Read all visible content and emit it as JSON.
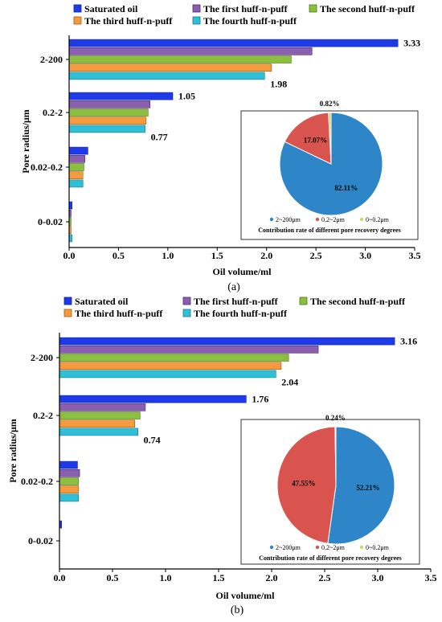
{
  "series_style": [
    {
      "name": "Saturated oil",
      "color": "#1f3be8",
      "stroke": "#0b1fb0"
    },
    {
      "name": "The first huff-n-puff",
      "color": "#8a5fb0",
      "stroke": "#4a2a70"
    },
    {
      "name": "The second huff-n-puff",
      "color": "#8cbf3f",
      "stroke": "#4a7a1a"
    },
    {
      "name": "The third huff-n-puff",
      "color": "#f59a3f",
      "stroke": "#a85a10"
    },
    {
      "name": "The fourth huff-n-puff",
      "color": "#2fc0d8",
      "stroke": "#137a8c"
    }
  ],
  "pie_colors": [
    "#2e86c8",
    "#d9534f",
    "#c8d96a"
  ],
  "panels": [
    {
      "label": "(a)",
      "chart_data": {
        "type": "bar",
        "orientation": "horizontal",
        "categories": [
          "2-200",
          "0.2-2",
          "0.02-0.2",
          "0-0.02"
        ],
        "series": [
          {
            "name": "Saturated oil",
            "values": [
              3.33,
              1.05,
              0.19,
              0.03
            ]
          },
          {
            "name": "The first huff-n-puff",
            "values": [
              2.46,
              0.82,
              0.16,
              0.02
            ]
          },
          {
            "name": "The second huff-n-puff",
            "values": [
              2.25,
              0.8,
              0.15,
              0.02
            ]
          },
          {
            "name": "The third huff-n-puff",
            "values": [
              2.05,
              0.78,
              0.14,
              0.02
            ]
          },
          {
            "name": "The fourth huff-n-puff",
            "values": [
              1.98,
              0.77,
              0.14,
              0.03
            ]
          }
        ],
        "value_labels": [
          {
            "category": "2-200",
            "series": "Saturated oil",
            "text": "3.33"
          },
          {
            "category": "2-200",
            "series": "The fourth huff-n-puff",
            "text": "1.98"
          },
          {
            "category": "0.2-2",
            "series": "Saturated oil",
            "text": "1.05"
          },
          {
            "category": "0.2-2",
            "series": "The fourth huff-n-puff",
            "text": "0.77"
          }
        ],
        "xlabel": "Oil volume/ml",
        "ylabel": "Pore radius/μm",
        "xlim": [
          0,
          3.5
        ],
        "xticks": [
          "0.0",
          "0.5",
          "1.0",
          "1.5",
          "2.0",
          "2.5",
          "3.0",
          "3.5"
        ],
        "legend_position": "top",
        "grid": false,
        "inset_pie": {
          "type": "pie",
          "slices": [
            {
              "label": "2~200μm",
              "value": 82.11,
              "text": "82.11%"
            },
            {
              "label": "0.2~2μm",
              "value": 17.07,
              "text": "17.07%"
            },
            {
              "label": "0~0.2μm",
              "value": 0.82,
              "text": "0.82%"
            }
          ],
          "caption": "Contribution rate of different pore recovery degrees"
        }
      }
    },
    {
      "label": "(b)",
      "chart_data": {
        "type": "bar",
        "orientation": "horizontal",
        "categories": [
          "2-200",
          "0.2-2",
          "0.02-0.2",
          "0-0.02"
        ],
        "series": [
          {
            "name": "Saturated oil",
            "values": [
              3.16,
              1.76,
              0.17,
              0.02
            ]
          },
          {
            "name": "The first huff-n-puff",
            "values": [
              2.44,
              0.81,
              0.19,
              0
            ]
          },
          {
            "name": "The second huff-n-puff",
            "values": [
              2.16,
              0.76,
              0.18,
              0
            ]
          },
          {
            "name": "The third huff-n-puff",
            "values": [
              2.09,
              0.71,
              0.18,
              0
            ]
          },
          {
            "name": "The fourth huff-n-puff",
            "values": [
              2.04,
              0.74,
              0.18,
              0
            ]
          }
        ],
        "value_labels": [
          {
            "category": "2-200",
            "series": "Saturated oil",
            "text": "3.16"
          },
          {
            "category": "2-200",
            "series": "The fourth huff-n-puff",
            "text": "2.04"
          },
          {
            "category": "0.2-2",
            "series": "Saturated oil",
            "text": "1.76"
          },
          {
            "category": "0.2-2",
            "series": "The fourth huff-n-puff",
            "text": "0.74"
          }
        ],
        "xlabel": "Oil volume/ml",
        "ylabel": "Pore radius/μm",
        "xlim": [
          0,
          3.5
        ],
        "xticks": [
          "0.0",
          "0.5",
          "1.0",
          "1.5",
          "2.0",
          "2.5",
          "3.0",
          "3.5"
        ],
        "legend_position": "top",
        "grid": false,
        "inset_pie": {
          "type": "pie",
          "slices": [
            {
              "label": "2~200μm",
              "value": 52.21,
              "text": "52.21%"
            },
            {
              "label": "0.2~2μm",
              "value": 47.55,
              "text": "47.55%"
            },
            {
              "label": "0~0.2μm",
              "value": 0.24,
              "text": "0.24%"
            }
          ],
          "caption": "Contribution rate of different pore recovery degrees"
        }
      }
    }
  ]
}
